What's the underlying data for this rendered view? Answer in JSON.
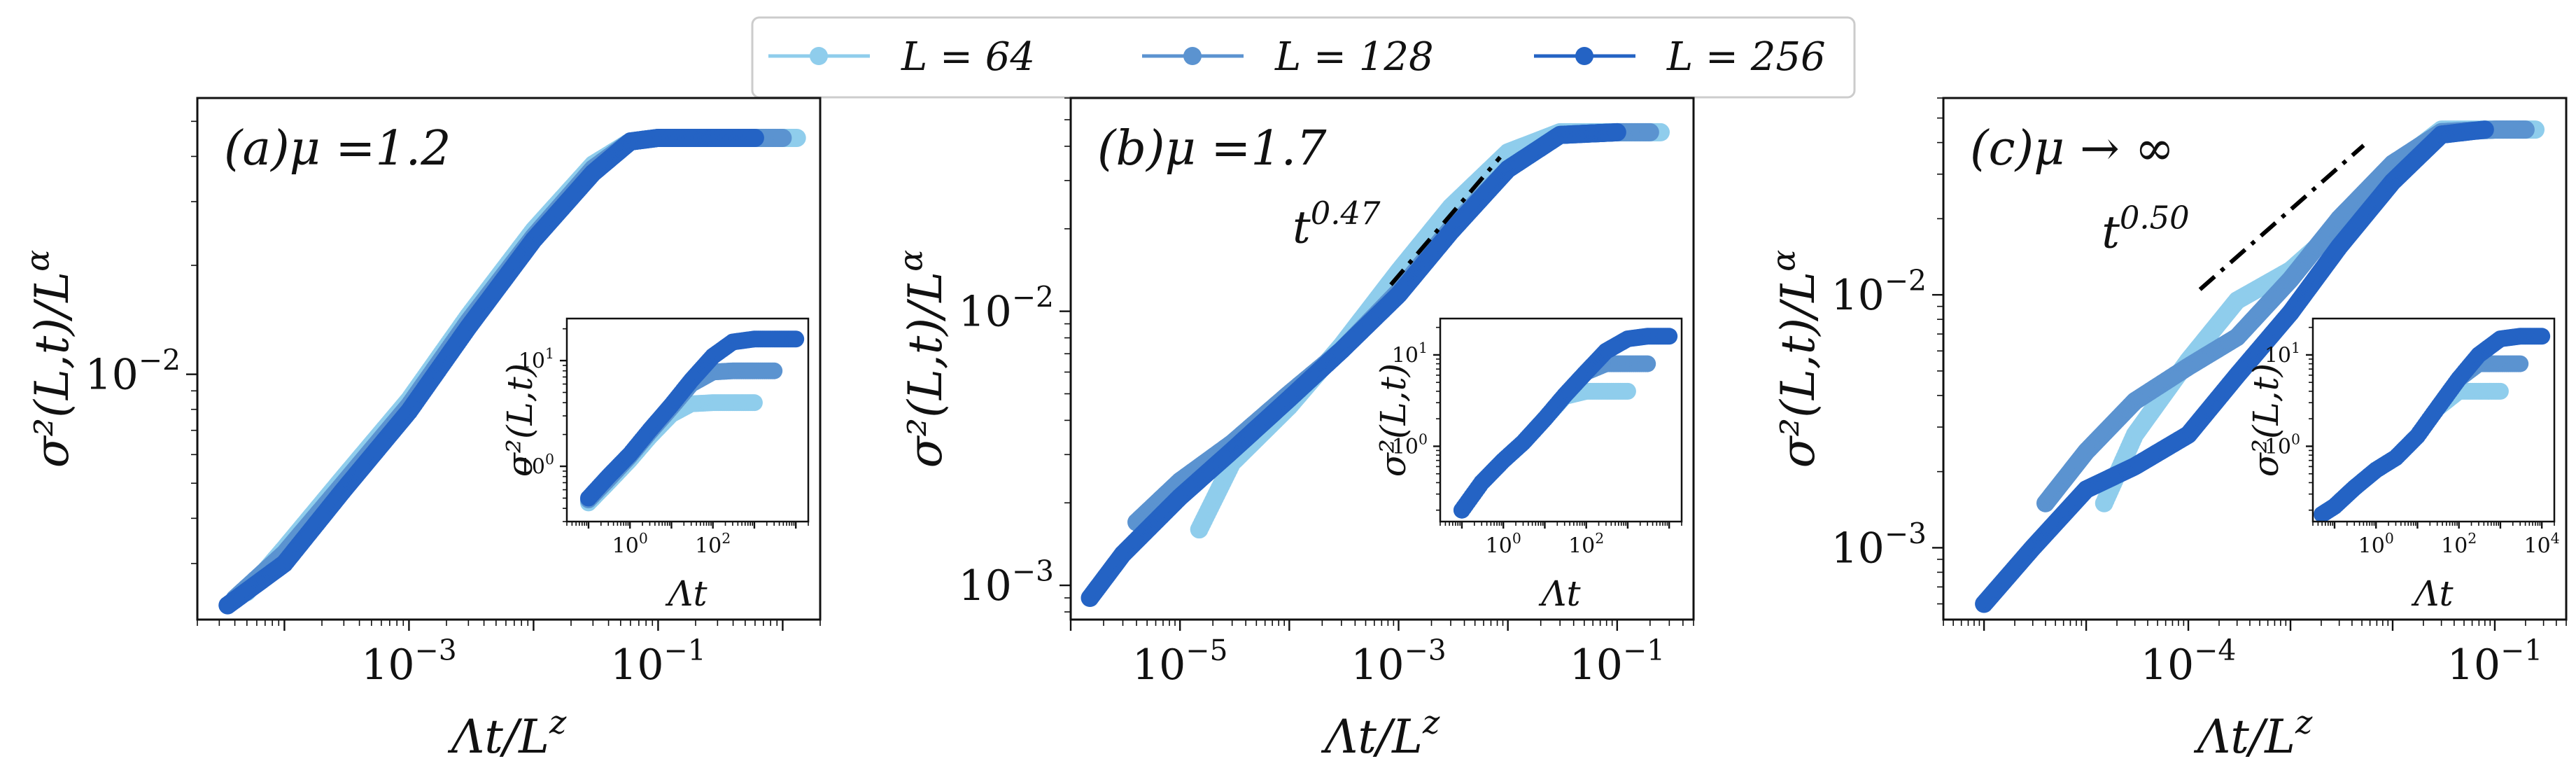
{
  "colors": {
    "L64": "#8fcdec",
    "L128": "#5b93d0",
    "L256": "#2463c4",
    "guide": "#000000"
  },
  "legend": [
    {
      "label": "L = 64",
      "color_key": "L64"
    },
    {
      "label": "L = 128",
      "color_key": "L128"
    },
    {
      "label": "L = 256",
      "color_key": "L256"
    }
  ],
  "chart_data": [
    {
      "type": "scatter",
      "panel_label": "(a)μ =1.2",
      "xlabel": "Λt/L^z",
      "ylabel": "σ²(L,t)/L^α",
      "xscale": "log",
      "yscale": "log",
      "xlim": [
        2e-05,
        2
      ],
      "ylim": [
        0.0021,
        0.058
      ],
      "xtick_labels": [
        "10^-3",
        "10^-1"
      ],
      "ytick_labels": [
        "10^-2"
      ],
      "series": [
        {
          "name": "L = 64",
          "x": [
            5e-05,
            0.0001,
            0.0003,
            0.001,
            0.003,
            0.01,
            0.03,
            0.06,
            0.1,
            0.3,
            1,
            1.3
          ],
          "y": [
            0.0025,
            0.0033,
            0.0052,
            0.0085,
            0.0145,
            0.025,
            0.038,
            0.044,
            0.045,
            0.045,
            0.045,
            0.045
          ]
        },
        {
          "name": "L = 128",
          "x": [
            4e-05,
            0.0001,
            0.0003,
            0.001,
            0.003,
            0.01,
            0.03,
            0.06,
            0.1,
            0.3,
            1
          ],
          "y": [
            0.0024,
            0.0032,
            0.005,
            0.0082,
            0.014,
            0.024,
            0.037,
            0.044,
            0.045,
            0.045,
            0.045
          ]
        },
        {
          "name": "L = 256",
          "x": [
            3.5e-05,
            0.0001,
            0.0003,
            0.001,
            0.003,
            0.01,
            0.03,
            0.06,
            0.1,
            0.3,
            0.6
          ],
          "y": [
            0.0023,
            0.003,
            0.0048,
            0.0079,
            0.0135,
            0.0235,
            0.036,
            0.044,
            0.045,
            0.045,
            0.045
          ]
        }
      ],
      "inset": {
        "xlabel": "Λt",
        "ylabel": "σ²(L,t)",
        "xlim": [
          0.03,
          20000
        ],
        "ylim": [
          0.3,
          25
        ],
        "xtick_labels": [
          "10^0",
          "10^2"
        ],
        "ytick_labels": [
          "10^0",
          "10^1"
        ],
        "series": [
          {
            "name": "L = 64",
            "x": [
              0.1,
              0.3,
              1,
              3,
              10,
              30,
              100,
              300,
              1000
            ],
            "y": [
              0.45,
              0.7,
              1.15,
              1.9,
              3.1,
              3.9,
              4.0,
              4.0,
              4.0
            ]
          },
          {
            "name": "L = 128",
            "x": [
              0.1,
              0.3,
              1,
              3,
              10,
              30,
              100,
              300,
              1000,
              3000
            ],
            "y": [
              0.48,
              0.75,
              1.25,
              2.1,
              3.6,
              6.0,
              7.8,
              8.0,
              8.0,
              8.0
            ]
          },
          {
            "name": "L = 256",
            "x": [
              0.1,
              0.3,
              1,
              3,
              10,
              30,
              100,
              300,
              1000,
              3000,
              10000
            ],
            "y": [
              0.5,
              0.8,
              1.3,
              2.2,
              3.8,
              6.5,
              11,
              15,
              16,
              16,
              16
            ]
          }
        ]
      }
    },
    {
      "type": "scatter",
      "panel_label": "(b)μ =1.7",
      "xlabel": "Λt/L^z",
      "ylabel": "σ²(L,t)/L^α",
      "xscale": "log",
      "yscale": "log",
      "xlim": [
        1e-06,
        0.5
      ],
      "ylim": [
        0.00075,
        0.06
      ],
      "xtick_labels": [
        "10^-5",
        "10^-3",
        "10^-1"
      ],
      "ytick_labels": [
        "10^-3",
        "10^-2"
      ],
      "annotation": "t^0.47",
      "guide_line": {
        "slope": 0.47,
        "x": [
          0.00085,
          0.0085
        ],
        "y": [
          0.0125,
          0.0365
        ]
      },
      "series": [
        {
          "name": "L = 64",
          "x": [
            1.5e-05,
            3e-05,
            0.0001,
            0.0003,
            0.001,
            0.003,
            0.01,
            0.03,
            0.1,
            0.25
          ],
          "y": [
            0.0016,
            0.0028,
            0.0045,
            0.0075,
            0.014,
            0.024,
            0.038,
            0.045,
            0.045,
            0.045
          ]
        },
        {
          "name": "L = 128",
          "x": [
            4e-06,
            1e-05,
            3e-05,
            0.0001,
            0.0003,
            0.001,
            0.003,
            0.01,
            0.03,
            0.1,
            0.2
          ],
          "y": [
            0.0017,
            0.0024,
            0.0033,
            0.005,
            0.0072,
            0.0118,
            0.02,
            0.033,
            0.044,
            0.045,
            0.045
          ]
        },
        {
          "name": "L = 256",
          "x": [
            1.5e-06,
            3e-06,
            1e-05,
            3e-05,
            0.0001,
            0.0003,
            0.001,
            0.003,
            0.01,
            0.03,
            0.1
          ],
          "y": [
            0.0009,
            0.0013,
            0.0021,
            0.0031,
            0.0048,
            0.0072,
            0.0115,
            0.0195,
            0.033,
            0.044,
            0.045
          ]
        }
      ],
      "inset": {
        "xlabel": "Λt",
        "ylabel": "σ²(L,t)",
        "xlim": [
          0.03,
          20000
        ],
        "ylim": [
          0.15,
          25
        ],
        "xtick_labels": [
          "10^0",
          "10^2"
        ],
        "ytick_labels": [
          "10^0",
          "10^1"
        ],
        "series": [
          {
            "name": "L = 64",
            "x": [
              0.1,
              0.3,
              1,
              3,
              10,
              30,
              100,
              300,
              1000
            ],
            "y": [
              0.2,
              0.4,
              0.7,
              1.1,
              2.0,
              3.5,
              4.0,
              4.0,
              4.0
            ]
          },
          {
            "name": "L = 128",
            "x": [
              0.1,
              0.3,
              1,
              3,
              10,
              30,
              100,
              300,
              1000,
              3000
            ],
            "y": [
              0.2,
              0.4,
              0.7,
              1.1,
              2.0,
              3.6,
              6.5,
              8.0,
              8.0,
              8.0
            ]
          },
          {
            "name": "L = 256",
            "x": [
              0.1,
              0.3,
              1,
              3,
              10,
              30,
              100,
              300,
              1000,
              3000,
              10000
            ],
            "y": [
              0.2,
              0.4,
              0.7,
              1.1,
              2.0,
              3.6,
              6.5,
              11,
              15,
              16,
              16
            ]
          }
        ]
      }
    },
    {
      "type": "scatter",
      "panel_label": "(c)μ → ∞",
      "xlabel": "Λt/L^z",
      "ylabel": "σ²(L,t)/L^α",
      "xscale": "log",
      "yscale": "log",
      "xlim": [
        4e-07,
        0.5
      ],
      "ylim": [
        0.00052,
        0.06
      ],
      "xtick_labels": [
        "10^-4",
        "10^-1"
      ],
      "ytick_labels": [
        "10^-3",
        "10^-2"
      ],
      "annotation": "t^0.50",
      "guide_line": {
        "slope": 0.5,
        "x": [
          0.00013,
          0.0052
        ],
        "y": [
          0.0105,
          0.039
        ]
      },
      "series": [
        {
          "name": "L = 64",
          "x": [
            1.5e-05,
            3e-05,
            0.0001,
            0.0003,
            0.001,
            0.003,
            0.01,
            0.03,
            0.1,
            0.25
          ],
          "y": [
            0.0015,
            0.0028,
            0.0055,
            0.0095,
            0.0125,
            0.0185,
            0.032,
            0.045,
            0.045,
            0.045
          ]
        },
        {
          "name": "L = 128",
          "x": [
            4e-06,
            1e-05,
            3e-05,
            0.0001,
            0.0003,
            0.001,
            0.003,
            0.01,
            0.03,
            0.1,
            0.2
          ],
          "y": [
            0.0015,
            0.0024,
            0.0038,
            0.0052,
            0.0068,
            0.0115,
            0.02,
            0.033,
            0.044,
            0.045,
            0.045
          ]
        },
        {
          "name": "L = 256",
          "x": [
            1e-06,
            3e-06,
            1e-05,
            3e-05,
            0.0001,
            0.0003,
            0.001,
            0.003,
            0.01,
            0.03,
            0.08
          ],
          "y": [
            0.0006,
            0.001,
            0.0017,
            0.0021,
            0.0028,
            0.0048,
            0.0085,
            0.0155,
            0.028,
            0.043,
            0.045
          ]
        }
      ],
      "inset": {
        "xlabel": "Λt",
        "ylabel": "σ²(L,t)",
        "xlim": [
          0.03,
          20000
        ],
        "ylim": [
          0.15,
          25
        ],
        "xtick_labels": [
          "10^0",
          "10^2",
          "10^4"
        ],
        "ytick_labels": [
          "10^0",
          "10^1"
        ],
        "series": [
          {
            "name": "L = 64",
            "x": [
              0.05,
              0.1,
              0.3,
              1,
              3,
              10,
              30,
              100,
              300,
              1000
            ],
            "y": [
              0.18,
              0.22,
              0.35,
              0.55,
              0.75,
              1.3,
              2.6,
              4.0,
              4.0,
              4.0
            ]
          },
          {
            "name": "L = 128",
            "x": [
              0.05,
              0.1,
              0.3,
              1,
              3,
              10,
              30,
              100,
              300,
              1000,
              3000
            ],
            "y": [
              0.18,
              0.22,
              0.35,
              0.55,
              0.75,
              1.3,
              2.6,
              5.5,
              8.0,
              8.0,
              8.0
            ]
          },
          {
            "name": "L = 256",
            "x": [
              0.05,
              0.1,
              0.3,
              1,
              3,
              10,
              30,
              100,
              300,
              1000,
              3000,
              10000
            ],
            "y": [
              0.18,
              0.22,
              0.35,
              0.55,
              0.75,
              1.3,
              2.6,
              5.5,
              10,
              15,
              16,
              16
            ]
          }
        ]
      }
    }
  ]
}
